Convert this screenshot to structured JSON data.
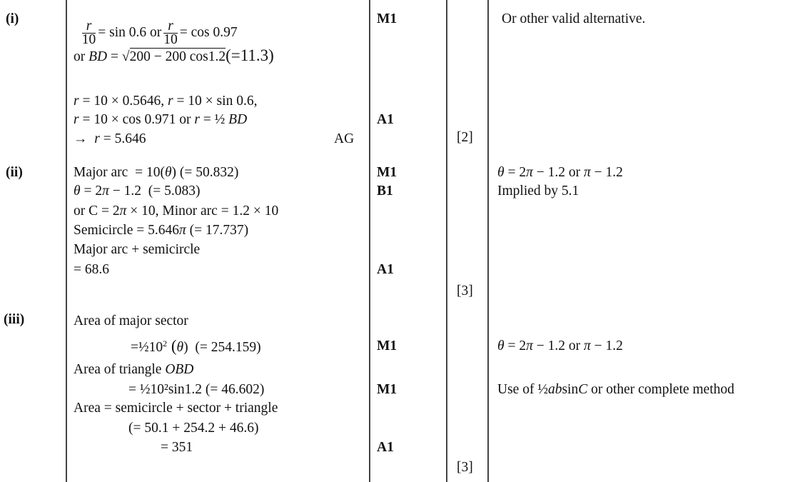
{
  "parts": [
    {
      "label": "(i)",
      "working": {
        "l1": {
          "frac1_num": "r",
          "frac1_den": "10",
          "a": "= sin 0.6 or",
          "frac2_num": "r",
          "frac2_den": "10",
          "b": "= cos 0.97"
        },
        "l2": [
          "or ",
          "BD",
          " = ",
          "√",
          "200 − 200 cos1.2",
          "(=11.3)"
        ],
        "l3": [
          "r",
          " = 10 × 0.5646, ",
          "r",
          " = 10 × sin 0.6,"
        ],
        "l4": [
          "r",
          " = 10 × cos 0.971 or ",
          "r",
          " = ½ ",
          "BD"
        ],
        "l5": [
          "→  ",
          "r",
          " = 5.646"
        ]
      },
      "answer_note": "AG",
      "marks": [
        "M1",
        "A1"
      ],
      "total": "[2]",
      "guidance": [
        "Or other valid alternative."
      ]
    },
    {
      "label": "(ii)",
      "working": {
        "l1": [
          "Major arc  = 10(",
          "θ",
          ") (= 50.832)"
        ],
        "l2": [
          "θ",
          " = 2",
          "π",
          " − 1.2  (= 5.083)"
        ],
        "l3": [
          "or C = 2",
          "π",
          " × 10, Minor arc = 1.2 × 10"
        ],
        "l4": [
          "Semicircle = 5.646",
          "π",
          " (= 17.737)"
        ],
        "l5": [
          "Major arc + semicircle"
        ],
        "l6": [
          "= 68.6"
        ]
      },
      "marks": [
        "M1",
        "B1",
        "A1"
      ],
      "total": "[3]",
      "guidance": {
        "g1": [
          "θ",
          " = 2",
          "π",
          " − 1.2 or ",
          "π",
          " − 1.2"
        ],
        "g2": [
          "Implied by 5.1"
        ]
      }
    },
    {
      "label": "(iii)",
      "working": {
        "l1": [
          "Area of major sector"
        ],
        "l2": [
          "=½10",
          "2",
          " (",
          "θ",
          ")  (= 254.159)"
        ],
        "l3": [
          "Area of triangle ",
          "OBD"
        ],
        "l4": [
          "= ½10²sin1.2 (= 46.602)"
        ],
        "l5": [
          "Area = semicircle + sector + triangle"
        ],
        "l6": [
          "(= 50.1 + 254.2 + 46.6)"
        ],
        "l7": [
          "= 351"
        ]
      },
      "marks": [
        "M1",
        "M1",
        "A1"
      ],
      "total": "[3]",
      "guidance": {
        "g1": [
          "θ",
          " = 2",
          "π",
          " − 1.2 or ",
          "π",
          " − 1.2"
        ],
        "g2": [
          "Use of ½",
          "ab",
          "sin",
          "C",
          " or other complete method"
        ]
      }
    }
  ]
}
